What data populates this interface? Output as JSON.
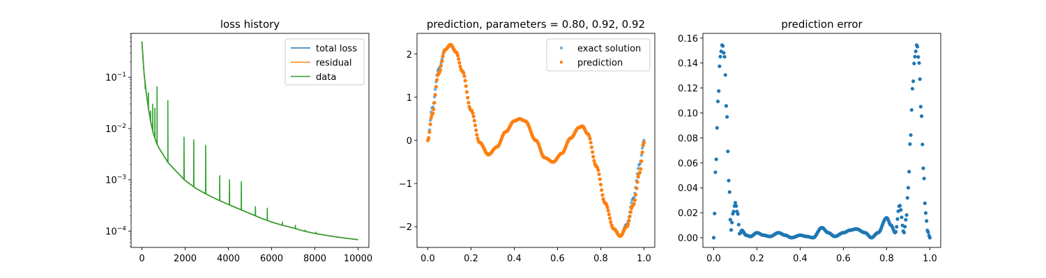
{
  "chart_data": [
    {
      "type": "line",
      "title": "loss history",
      "xlabel": "",
      "ylabel": "",
      "yscale": "log",
      "xlim": [
        -500,
        10500
      ],
      "ylim": [
        4.8e-05,
        0.72
      ],
      "xticks": [
        "0",
        "2000",
        "4000",
        "6000",
        "8000",
        "10000"
      ],
      "yticks": [
        "10^-4",
        "10^-3",
        "10^-2",
        "10^-1"
      ],
      "grid": false,
      "legend_position": "top-right",
      "legend": [
        "total loss",
        "residual",
        "data"
      ],
      "series": [
        {
          "name": "total loss",
          "color": "#1f77b4",
          "x": [
            0,
            100,
            200,
            300,
            400,
            500,
            600,
            700,
            800,
            1000,
            1200,
            1500,
            2000,
            2500,
            3000,
            3500,
            4000,
            4500,
            5000,
            5500,
            6000,
            6500,
            7000,
            7500,
            8000,
            8500,
            9000,
            9500,
            10000
          ],
          "y": [
            0.5,
            0.12,
            0.05,
            0.025,
            0.014,
            0.009,
            0.0065,
            0.005,
            0.0041,
            0.003,
            0.0022,
            0.0016,
            0.00097,
            0.00068,
            0.00052,
            0.00041,
            0.00033,
            0.00027,
            0.00022,
            0.00018,
            0.00015,
            0.00013,
            0.000115,
            0.0001,
            9e-05,
            8.3e-05,
            7.7e-05,
            7.2e-05,
            6.8e-05
          ]
        },
        {
          "name": "residual",
          "color": "#ff7f0e",
          "x": [
            0,
            100,
            200,
            300,
            400,
            500,
            600,
            700,
            800,
            1000,
            1200,
            1500,
            2000,
            2500,
            3000,
            3500,
            4000,
            4500,
            5000,
            5500,
            6000,
            6500,
            7000,
            7500,
            8000,
            8500,
            9000,
            9500,
            10000
          ],
          "y": [
            0.5,
            0.12,
            0.05,
            0.025,
            0.014,
            0.009,
            0.0065,
            0.005,
            0.0041,
            0.003,
            0.0022,
            0.0016,
            0.00097,
            0.00068,
            0.00052,
            0.00041,
            0.00033,
            0.00027,
            0.00022,
            0.00018,
            0.00015,
            0.00013,
            0.000115,
            0.0001,
            9e-05,
            8.3e-05,
            7.7e-05,
            7.2e-05,
            6.8e-05
          ]
        },
        {
          "name": "data",
          "color": "#2ca02c",
          "x": [
            0,
            100,
            200,
            300,
            400,
            500,
            600,
            700,
            800,
            1000,
            1200,
            1500,
            2000,
            2500,
            3000,
            3500,
            4000,
            4500,
            5000,
            5500,
            6000,
            6500,
            7000,
            7500,
            8000,
            8500,
            9000,
            9500,
            10000
          ],
          "y": [
            0.5,
            0.12,
            0.05,
            0.025,
            0.014,
            0.009,
            0.0065,
            0.005,
            0.0041,
            0.003,
            0.0022,
            0.0016,
            0.00097,
            0.00068,
            0.00052,
            0.00041,
            0.00033,
            0.00027,
            0.00022,
            0.00018,
            0.00015,
            0.00013,
            0.000115,
            0.0001,
            9e-05,
            8.3e-05,
            7.7e-05,
            7.2e-05,
            6.8e-05
          ],
          "spikes": [
            {
              "x": 150,
              "y": 0.06
            },
            {
              "x": 300,
              "y": 0.05
            },
            {
              "x": 400,
              "y": 0.022
            },
            {
              "x": 500,
              "y": 0.03
            },
            {
              "x": 600,
              "y": 0.025
            },
            {
              "x": 700,
              "y": 0.065
            },
            {
              "x": 1200,
              "y": 0.035
            },
            {
              "x": 1950,
              "y": 0.0068
            },
            {
              "x": 2400,
              "y": 0.006
            },
            {
              "x": 2950,
              "y": 0.0047
            },
            {
              "x": 3600,
              "y": 0.0012
            },
            {
              "x": 4050,
              "y": 0.001
            },
            {
              "x": 4600,
              "y": 0.00092
            },
            {
              "x": 5250,
              "y": 0.0003
            },
            {
              "x": 5800,
              "y": 0.00028
            },
            {
              "x": 6500,
              "y": 0.00015
            },
            {
              "x": 7100,
              "y": 0.00013
            },
            {
              "x": 7550,
              "y": 0.000105
            },
            {
              "x": 8050,
              "y": 9.5e-05
            }
          ]
        }
      ]
    },
    {
      "type": "scatter",
      "title": "prediction, parameters = 0.80, 0.92, 0.92",
      "xlabel": "",
      "ylabel": "",
      "xlim": [
        -0.05,
        1.05
      ],
      "ylim": [
        -2.48,
        2.48
      ],
      "xticks": [
        "0.0",
        "0.2",
        "0.4",
        "0.6",
        "0.8",
        "1.0"
      ],
      "yticks": [
        "−2",
        "−1",
        "0",
        "1",
        "2"
      ],
      "grid": false,
      "legend_position": "top-right",
      "series": [
        {
          "name": "exact solution",
          "color": "#1f77b4",
          "x": [
            0.0,
            0.02,
            0.05,
            0.08,
            0.105,
            0.13,
            0.16,
            0.2,
            0.24,
            0.28,
            0.32,
            0.36,
            0.4,
            0.425,
            0.45,
            0.5,
            0.54,
            0.58,
            0.62,
            0.66,
            0.7,
            0.715,
            0.74,
            0.78,
            0.82,
            0.86,
            0.89,
            0.92,
            0.95,
            0.98,
            1.0
          ],
          "y": [
            0.0,
            0.75,
            1.65,
            2.1,
            2.2,
            2.05,
            1.6,
            0.7,
            -0.05,
            -0.32,
            -0.15,
            0.2,
            0.45,
            0.5,
            0.45,
            0.0,
            -0.4,
            -0.5,
            -0.3,
            0.05,
            0.3,
            0.32,
            0.15,
            -0.6,
            -1.45,
            -2.05,
            -2.22,
            -1.95,
            -1.35,
            -0.55,
            0.0
          ]
        },
        {
          "name": "prediction",
          "color": "#ff7f0e",
          "x": [
            0.0,
            0.02,
            0.05,
            0.08,
            0.105,
            0.13,
            0.16,
            0.2,
            0.24,
            0.28,
            0.32,
            0.36,
            0.4,
            0.425,
            0.45,
            0.5,
            0.54,
            0.58,
            0.62,
            0.66,
            0.7,
            0.715,
            0.74,
            0.78,
            0.82,
            0.86,
            0.89,
            0.92,
            0.95,
            0.98,
            1.0
          ],
          "y": [
            0.0,
            0.6,
            1.55,
            2.1,
            2.22,
            2.05,
            1.6,
            0.7,
            -0.05,
            -0.33,
            -0.15,
            0.2,
            0.45,
            0.5,
            0.45,
            0.0,
            -0.4,
            -0.5,
            -0.3,
            0.05,
            0.3,
            0.33,
            0.15,
            -0.6,
            -1.45,
            -2.05,
            -2.22,
            -2.0,
            -1.5,
            -0.75,
            -0.05
          ]
        }
      ]
    },
    {
      "type": "scatter",
      "title": "prediction error",
      "xlabel": "",
      "ylabel": "",
      "xlim": [
        -0.05,
        1.05
      ],
      "ylim": [
        -0.0078,
        0.1638
      ],
      "xticks": [
        "0.0",
        "0.2",
        "0.4",
        "0.6",
        "0.8",
        "1.0"
      ],
      "yticks": [
        "0.00",
        "0.02",
        "0.04",
        "0.06",
        "0.08",
        "0.10",
        "0.12",
        "0.14",
        "0.16"
      ],
      "grid": false,
      "series": [
        {
          "name": "",
          "color": "#1f77b4",
          "x": [
            0.0,
            0.01,
            0.02,
            0.03,
            0.04,
            0.05,
            0.06,
            0.07,
            0.08,
            0.09,
            0.1,
            0.11,
            0.12,
            0.13,
            0.15,
            0.17,
            0.2,
            0.23,
            0.26,
            0.3,
            0.33,
            0.36,
            0.4,
            0.43,
            0.46,
            0.5,
            0.53,
            0.56,
            0.6,
            0.63,
            0.66,
            0.7,
            0.73,
            0.76,
            0.8,
            0.82,
            0.84,
            0.86,
            0.88,
            0.89,
            0.9,
            0.91,
            0.92,
            0.93,
            0.94,
            0.95,
            0.96,
            0.97,
            0.98,
            0.99,
            1.0
          ],
          "y": [
            0.0,
            0.06,
            0.11,
            0.145,
            0.155,
            0.145,
            0.1,
            0.045,
            0.006,
            0.02,
            0.028,
            0.02,
            0.003,
            0.006,
            0.002,
            0.001,
            0.004,
            0.002,
            0.001,
            0.004,
            0.002,
            0.0,
            0.002,
            0.001,
            0.0,
            0.008,
            0.004,
            0.001,
            0.004,
            0.006,
            0.007,
            0.004,
            0.0,
            0.004,
            0.016,
            0.01,
            0.004,
            0.026,
            0.004,
            0.015,
            0.04,
            0.08,
            0.12,
            0.145,
            0.155,
            0.14,
            0.1,
            0.055,
            0.02,
            0.005,
            0.0
          ]
        }
      ]
    }
  ]
}
